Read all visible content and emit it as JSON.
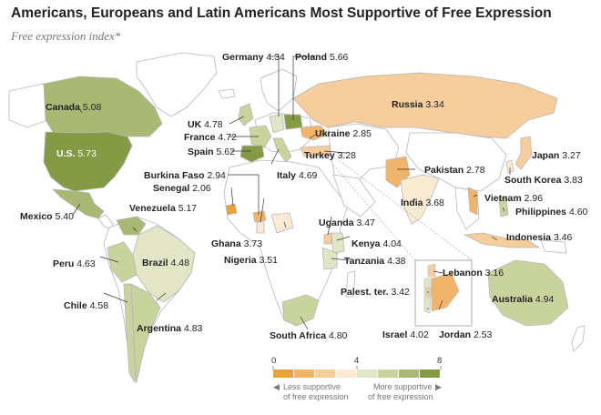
{
  "title": "Americans, Europeans and Latin Americans Most Supportive of Free Expression",
  "subtitle": "Free expression index*",
  "colors": {
    "land": "#ffffff",
    "border": "#b7b7b7",
    "ocean": "#ffffff",
    "scale": [
      "#e8a23c",
      "#f0b56a",
      "#f6cd9c",
      "#faebd2",
      "#e2e6c6",
      "#c9d39d",
      "#a9b873",
      "#859a45"
    ]
  },
  "legend": {
    "ticks": [
      "0",
      "4",
      "8"
    ],
    "less": [
      "Less supportive",
      "of free expression"
    ],
    "more": [
      "More supportive",
      "of free expression"
    ]
  },
  "countries": [
    {
      "name": "Canada",
      "value": "5.08"
    },
    {
      "name": "U.S.",
      "value": "5.73"
    },
    {
      "name": "Mexico",
      "value": "5.40"
    },
    {
      "name": "Venezuela",
      "value": "5.17"
    },
    {
      "name": "Brazil",
      "value": "4.48"
    },
    {
      "name": "Peru",
      "value": "4.63"
    },
    {
      "name": "Chile",
      "value": "4.58"
    },
    {
      "name": "Argentina",
      "value": "4.83"
    },
    {
      "name": "Germany",
      "value": "4.34"
    },
    {
      "name": "Poland",
      "value": "5.66"
    },
    {
      "name": "UK",
      "value": "4.78"
    },
    {
      "name": "France",
      "value": "4.72"
    },
    {
      "name": "Spain",
      "value": "5.62"
    },
    {
      "name": "Italy",
      "value": "4.69"
    },
    {
      "name": "Burkina Faso",
      "value": "2.94"
    },
    {
      "name": "Senegal",
      "value": "2.06"
    },
    {
      "name": "Ghana",
      "value": "3.73"
    },
    {
      "name": "Nigeria",
      "value": "3.51"
    },
    {
      "name": "Uganda",
      "value": "3.47"
    },
    {
      "name": "Kenya",
      "value": "4.04"
    },
    {
      "name": "Tanzania",
      "value": "4.38"
    },
    {
      "name": "South Africa",
      "value": "4.80"
    },
    {
      "name": "Russia",
      "value": "3.34"
    },
    {
      "name": "Ukraine",
      "value": "2.85"
    },
    {
      "name": "Turkey",
      "value": "3.28"
    },
    {
      "name": "Pakistan",
      "value": "2.78"
    },
    {
      "name": "India",
      "value": "3.68"
    },
    {
      "name": "Japan",
      "value": "3.27"
    },
    {
      "name": "South Korea",
      "value": "3.83"
    },
    {
      "name": "Vietnam",
      "value": "2.96"
    },
    {
      "name": "Philippines",
      "value": "4.60"
    },
    {
      "name": "Indonesia",
      "value": "3.46"
    },
    {
      "name": "Australia",
      "value": "4.94"
    },
    {
      "name": "Lebanon",
      "value": "3.16"
    },
    {
      "name": "Palest. ter.",
      "value": "3.42"
    },
    {
      "name": "Israel",
      "value": "4.02"
    },
    {
      "name": "Jordan",
      "value": "2.53"
    }
  ]
}
